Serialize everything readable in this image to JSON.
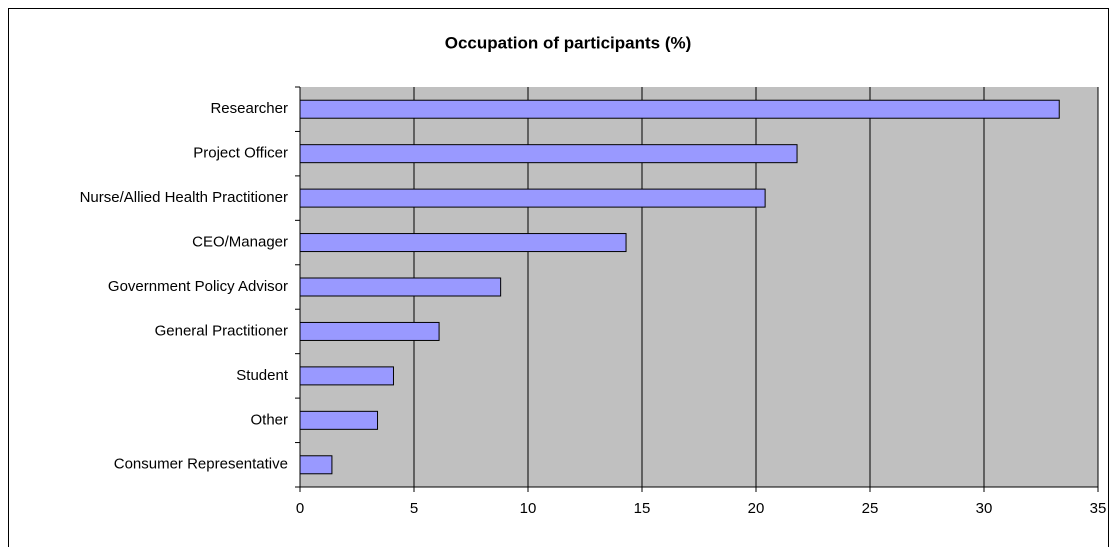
{
  "chart_data": {
    "type": "bar",
    "orientation": "horizontal",
    "title": "Occupation of participants (%)",
    "categories": [
      "Researcher",
      "Project Officer",
      "Nurse/Allied Health Practitioner",
      "CEO/Manager",
      "Government Policy Advisor",
      "General Practitioner",
      "Student",
      "Other",
      "Consumer Representative"
    ],
    "values": [
      33.3,
      21.8,
      20.4,
      14.3,
      8.8,
      6.1,
      4.1,
      3.4,
      1.4
    ],
    "color": "#9999ff",
    "xlim": [
      0,
      35
    ],
    "xticks": [
      0,
      5,
      10,
      15,
      20,
      25,
      30,
      35
    ],
    "grid": true
  }
}
